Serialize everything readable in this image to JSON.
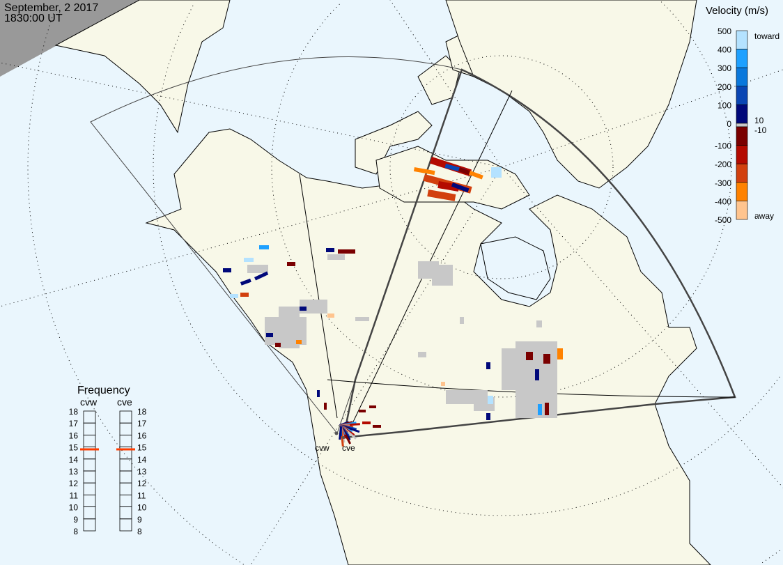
{
  "header": {
    "date": "September, 2 2017",
    "time": "1830:00 UT"
  },
  "colors": {
    "ocean": "#eaf6fd",
    "land": "#f8f8e8",
    "night": "#999999",
    "ground_scatter": "#c8c8c8"
  },
  "velocity_scale": {
    "title": "Velocity (m/s)",
    "ticks": [
      "500",
      "400",
      "300",
      "200",
      "100",
      "0",
      "-100",
      "-200",
      "-300",
      "-400",
      "-500"
    ],
    "toward_label": "toward",
    "away_label": "away",
    "gs_upper": "10",
    "gs_lower": "-10",
    "bins": [
      {
        "min": 400,
        "max": 500,
        "color": "#b4e2ff"
      },
      {
        "min": 300,
        "max": 400,
        "color": "#1ea0ff"
      },
      {
        "min": 200,
        "max": 300,
        "color": "#0a78dc"
      },
      {
        "min": 100,
        "max": 200,
        "color": "#0a46b4"
      },
      {
        "min": 10,
        "max": 100,
        "color": "#00087a"
      },
      {
        "min": -10,
        "max": 10,
        "color": "#c8c8c8"
      },
      {
        "min": -100,
        "max": -10,
        "color": "#7a0000"
      },
      {
        "min": -200,
        "max": -100,
        "color": "#b40a00"
      },
      {
        "min": -300,
        "max": -200,
        "color": "#d2400e"
      },
      {
        "min": -400,
        "max": -300,
        "color": "#ff8200"
      },
      {
        "min": -500,
        "max": -400,
        "color": "#ffc48e"
      }
    ]
  },
  "frequency": {
    "title": "Frequency",
    "ticks": [
      "18",
      "17",
      "16",
      "15",
      "14",
      "13",
      "12",
      "11",
      "10",
      "9",
      "8"
    ],
    "radars": [
      {
        "name": "cvw",
        "freq_mhz": 14.8
      },
      {
        "name": "cve",
        "freq_mhz": 14.8
      }
    ],
    "marker_color": "#ff3c00"
  },
  "sites": [
    {
      "name": "cvw"
    },
    {
      "name": "cve"
    }
  ]
}
